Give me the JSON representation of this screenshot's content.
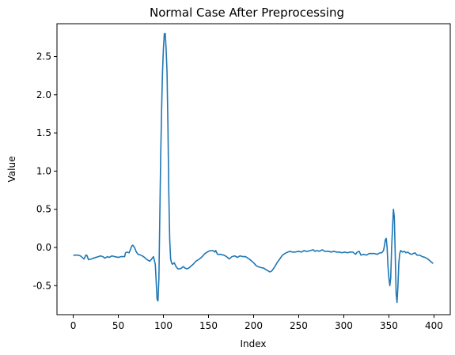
{
  "chart_data": {
    "type": "line",
    "title": "Normal Case After Preprocessing",
    "xlabel": "Index",
    "ylabel": "Value",
    "xlim": [
      -18,
      418
    ],
    "ylim": [
      -0.88,
      2.93
    ],
    "xticks": [
      0,
      50,
      100,
      150,
      200,
      250,
      300,
      350,
      400
    ],
    "yticks": [
      -0.5,
      0.0,
      0.5,
      1.0,
      1.5,
      2.0,
      2.5
    ],
    "grid": false,
    "series": [
      {
        "color": "#1f77b4",
        "points": [
          [
            0,
            -0.1
          ],
          [
            5,
            -0.1
          ],
          [
            8,
            -0.11
          ],
          [
            10,
            -0.13
          ],
          [
            12,
            -0.15
          ],
          [
            14,
            -0.1
          ],
          [
            15,
            -0.1
          ],
          [
            17,
            -0.16
          ],
          [
            20,
            -0.15
          ],
          [
            25,
            -0.13
          ],
          [
            28,
            -0.12
          ],
          [
            30,
            -0.11
          ],
          [
            33,
            -0.12
          ],
          [
            35,
            -0.14
          ],
          [
            38,
            -0.12
          ],
          [
            40,
            -0.13
          ],
          [
            43,
            -0.11
          ],
          [
            46,
            -0.12
          ],
          [
            50,
            -0.13
          ],
          [
            53,
            -0.12
          ],
          [
            55,
            -0.12
          ],
          [
            57,
            -0.12
          ],
          [
            58,
            -0.07
          ],
          [
            60,
            -0.06
          ],
          [
            62,
            -0.07
          ],
          [
            63,
            -0.04
          ],
          [
            65,
            0.02
          ],
          [
            66,
            0.03
          ],
          [
            68,
            0.0
          ],
          [
            70,
            -0.06
          ],
          [
            72,
            -0.09
          ],
          [
            75,
            -0.1
          ],
          [
            78,
            -0.12
          ],
          [
            80,
            -0.14
          ],
          [
            82,
            -0.16
          ],
          [
            85,
            -0.18
          ],
          [
            87,
            -0.15
          ],
          [
            89,
            -0.12
          ],
          [
            91,
            -0.22
          ],
          [
            92,
            -0.45
          ],
          [
            93,
            -0.68
          ],
          [
            94,
            -0.7
          ],
          [
            95,
            -0.4
          ],
          [
            96,
            0.4
          ],
          [
            97,
            1.2
          ],
          [
            98,
            1.8
          ],
          [
            99,
            2.3
          ],
          [
            100,
            2.6
          ],
          [
            101,
            2.8
          ],
          [
            102,
            2.8
          ],
          [
            103,
            2.6
          ],
          [
            104,
            2.3
          ],
          [
            105,
            1.6
          ],
          [
            106,
            0.7
          ],
          [
            107,
            0.1
          ],
          [
            108,
            -0.15
          ],
          [
            109,
            -0.2
          ],
          [
            110,
            -0.22
          ],
          [
            112,
            -0.2
          ],
          [
            114,
            -0.25
          ],
          [
            116,
            -0.28
          ],
          [
            118,
            -0.28
          ],
          [
            120,
            -0.27
          ],
          [
            122,
            -0.25
          ],
          [
            124,
            -0.27
          ],
          [
            126,
            -0.28
          ],
          [
            128,
            -0.27
          ],
          [
            130,
            -0.25
          ],
          [
            133,
            -0.22
          ],
          [
            136,
            -0.18
          ],
          [
            140,
            -0.15
          ],
          [
            143,
            -0.12
          ],
          [
            146,
            -0.08
          ],
          [
            150,
            -0.05
          ],
          [
            153,
            -0.04
          ],
          [
            155,
            -0.04
          ],
          [
            157,
            -0.06
          ],
          [
            158,
            -0.04
          ],
          [
            160,
            -0.09
          ],
          [
            163,
            -0.09
          ],
          [
            167,
            -0.1
          ],
          [
            170,
            -0.12
          ],
          [
            173,
            -0.15
          ],
          [
            176,
            -0.12
          ],
          [
            179,
            -0.11
          ],
          [
            182,
            -0.13
          ],
          [
            185,
            -0.11
          ],
          [
            188,
            -0.12
          ],
          [
            191,
            -0.12
          ],
          [
            195,
            -0.15
          ],
          [
            198,
            -0.18
          ],
          [
            200,
            -0.2
          ],
          [
            203,
            -0.24
          ],
          [
            207,
            -0.26
          ],
          [
            211,
            -0.27
          ],
          [
            215,
            -0.3
          ],
          [
            218,
            -0.32
          ],
          [
            220,
            -0.31
          ],
          [
            223,
            -0.26
          ],
          [
            226,
            -0.2
          ],
          [
            229,
            -0.15
          ],
          [
            232,
            -0.1
          ],
          [
            236,
            -0.07
          ],
          [
            240,
            -0.05
          ],
          [
            243,
            -0.06
          ],
          [
            246,
            -0.06
          ],
          [
            250,
            -0.05
          ],
          [
            253,
            -0.06
          ],
          [
            256,
            -0.04
          ],
          [
            258,
            -0.05
          ],
          [
            260,
            -0.05
          ],
          [
            263,
            -0.04
          ],
          [
            266,
            -0.03
          ],
          [
            268,
            -0.05
          ],
          [
            270,
            -0.04
          ],
          [
            273,
            -0.05
          ],
          [
            276,
            -0.03
          ],
          [
            279,
            -0.05
          ],
          [
            283,
            -0.05
          ],
          [
            286,
            -0.06
          ],
          [
            289,
            -0.05
          ],
          [
            292,
            -0.06
          ],
          [
            295,
            -0.06
          ],
          [
            298,
            -0.07
          ],
          [
            301,
            -0.06
          ],
          [
            304,
            -0.07
          ],
          [
            307,
            -0.06
          ],
          [
            310,
            -0.06
          ],
          [
            313,
            -0.09
          ],
          [
            315,
            -0.06
          ],
          [
            317,
            -0.05
          ],
          [
            319,
            -0.1
          ],
          [
            322,
            -0.09
          ],
          [
            325,
            -0.1
          ],
          [
            328,
            -0.08
          ],
          [
            331,
            -0.08
          ],
          [
            334,
            -0.08
          ],
          [
            337,
            -0.09
          ],
          [
            340,
            -0.07
          ],
          [
            342,
            -0.07
          ],
          [
            344,
            -0.04
          ],
          [
            345,
            0.02
          ],
          [
            346,
            0.1
          ],
          [
            347,
            0.12
          ],
          [
            348,
            0.0
          ],
          [
            349,
            -0.25
          ],
          [
            350,
            -0.4
          ],
          [
            351,
            -0.5
          ],
          [
            352,
            -0.4
          ],
          [
            353,
            0.0
          ],
          [
            354,
            0.25
          ],
          [
            355,
            0.5
          ],
          [
            356,
            0.4
          ],
          [
            357,
            -0.1
          ],
          [
            358,
            -0.6
          ],
          [
            359,
            -0.72
          ],
          [
            360,
            -0.5
          ],
          [
            361,
            -0.2
          ],
          [
            362,
            -0.08
          ],
          [
            363,
            -0.04
          ],
          [
            365,
            -0.06
          ],
          [
            367,
            -0.05
          ],
          [
            369,
            -0.07
          ],
          [
            371,
            -0.06
          ],
          [
            373,
            -0.08
          ],
          [
            375,
            -0.09
          ],
          [
            377,
            -0.08
          ],
          [
            379,
            -0.07
          ],
          [
            381,
            -0.1
          ],
          [
            384,
            -0.1
          ],
          [
            387,
            -0.12
          ],
          [
            390,
            -0.13
          ],
          [
            393,
            -0.15
          ],
          [
            396,
            -0.18
          ],
          [
            399,
            -0.21
          ]
        ]
      }
    ]
  }
}
